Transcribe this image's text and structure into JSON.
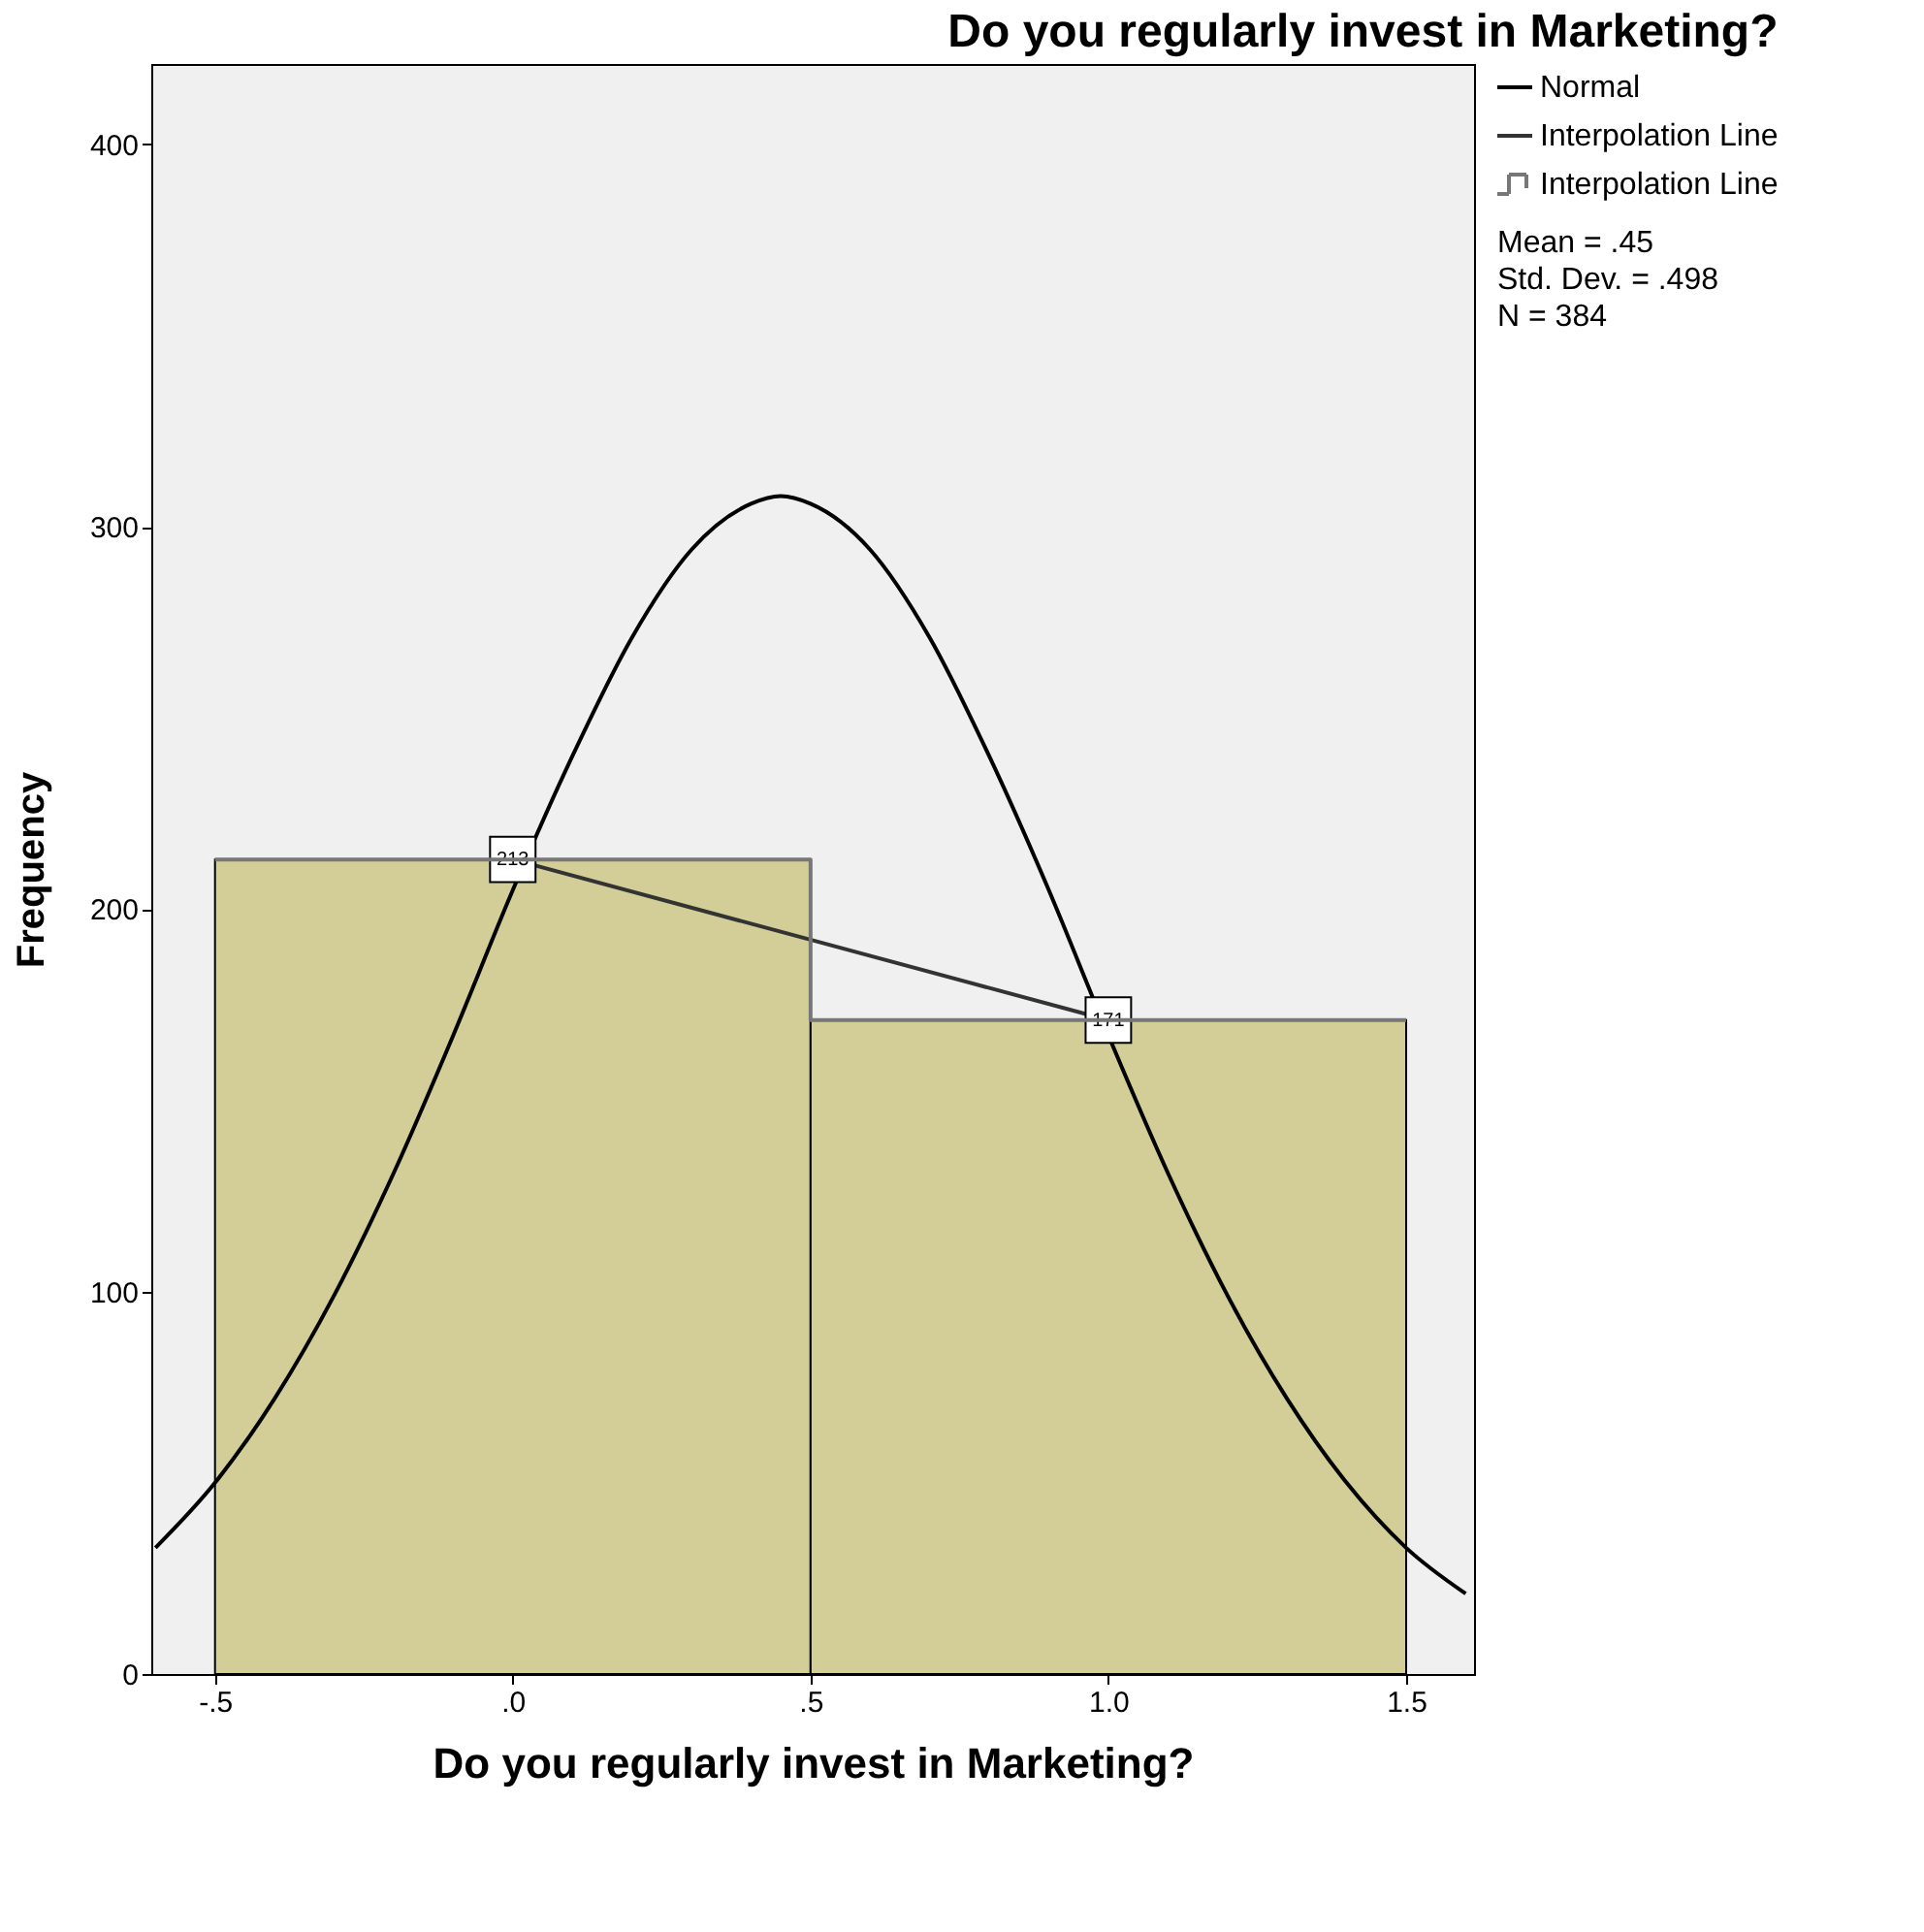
{
  "chart_data": {
    "type": "histogram",
    "title": "Do you regularly invest in Marketing?",
    "xlabel": "Do you regularly invest in Marketing?",
    "ylabel": "Frequency",
    "bins": [
      -0.5,
      0.5,
      1.5
    ],
    "values": [
      213,
      171
    ],
    "color": "#d3ce97",
    "series": [
      {
        "name": "Normal",
        "type": "line",
        "color": "#000000",
        "x": [
          -0.6,
          -0.5,
          -0.4,
          -0.3,
          -0.2,
          -0.1,
          0.0,
          0.1,
          0.2,
          0.3,
          0.4,
          0.45,
          0.5,
          0.6,
          0.7,
          0.8,
          0.9,
          1.0,
          1.1,
          1.2,
          1.3,
          1.4,
          1.5,
          1.6
        ],
        "values": [
          33,
          50,
          72,
          99,
          131,
          167,
          205,
          240,
          271,
          294,
          306,
          308,
          306,
          294,
          271,
          240,
          205,
          167,
          131,
          99,
          72,
          50,
          33,
          21
        ]
      },
      {
        "name": "Interpolation Line",
        "type": "line",
        "color": "#333333",
        "marker": "square",
        "x": [
          0,
          1
        ],
        "values": [
          213,
          171
        ],
        "value_labels": [
          "213",
          "171"
        ]
      },
      {
        "name": "Interpolation Line",
        "type": "step",
        "color": "#777777",
        "x": [
          -0.5,
          0.5,
          1.5
        ],
        "values": [
          213,
          171,
          171
        ]
      }
    ],
    "xlim": [
      -0.607,
      1.614
    ],
    "ylim": [
      0,
      421
    ],
    "xticks": [
      {
        "value": -0.5,
        "label": "-.5"
      },
      {
        "value": 0,
        "label": ".0"
      },
      {
        "value": 0.5,
        "label": ".5"
      },
      {
        "value": 1,
        "label": "1.0"
      },
      {
        "value": 1.5,
        "label": "1.5"
      }
    ],
    "yticks": [
      0,
      100,
      200,
      300,
      400
    ],
    "grid": false,
    "legend": "top right",
    "annotations": [
      "Mean = .45",
      "Std. Dev. = .498",
      "N = 384"
    ]
  }
}
